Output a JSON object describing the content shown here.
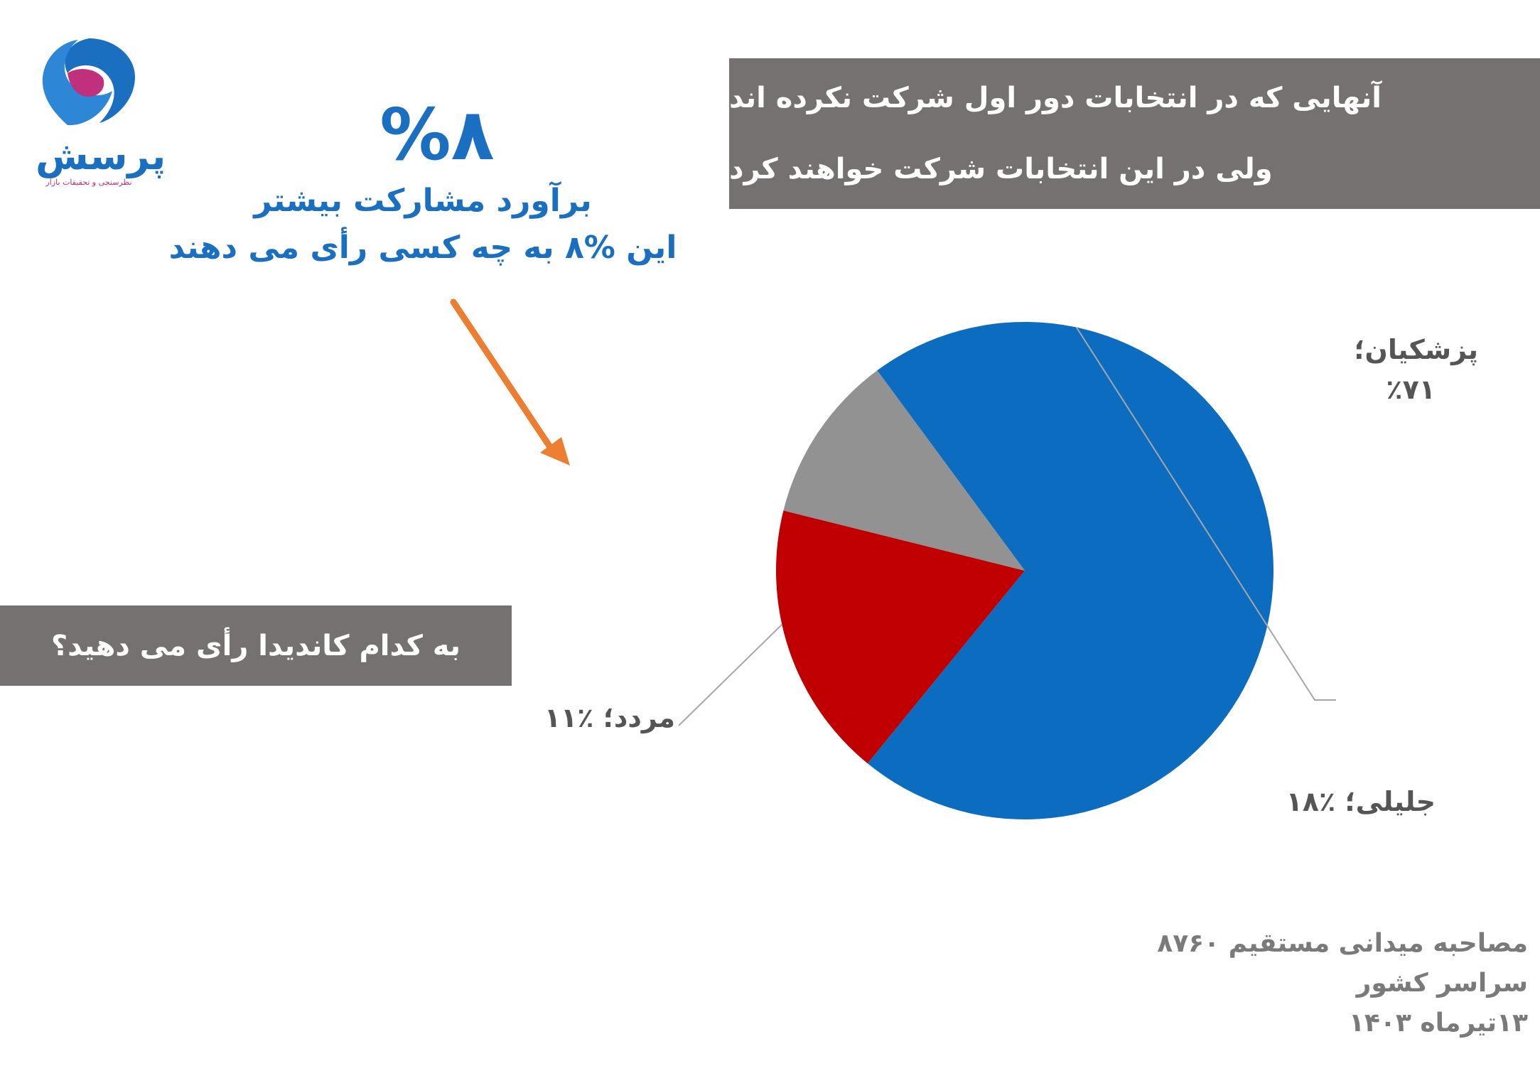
{
  "logo": {
    "name": "پرسش",
    "tagline": "نظرسنجی و تحقیقات بازار"
  },
  "headline": {
    "percent": "%۸",
    "line1": "برآورد مشارکت بیشتر",
    "line2": "این %۸ به چه کسی رأی می دهند"
  },
  "title": {
    "line1": "آنهایی که در انتخابات دور اول شرکت نکرده اند",
    "line2": "ولی در این انتخابات شرکت خواهند کرد"
  },
  "question": "به کدام کاندیدا رأی می دهید؟",
  "labels": {
    "pezeshkian_name": "پزشکیان؛",
    "pezeshkian_pct": "٪۷۱",
    "jalili": "جلیلی؛ ٪۱۸",
    "undecided": "مردد؛ ٪۱۱"
  },
  "footer": {
    "line1": "مصاحبه میدانی مستقیم ۸۷۶۰",
    "line2": "سراسر کشور",
    "line3": "۱۳تیرماه ۱۴۰۳"
  },
  "colors": {
    "pezeshkian": "#0b6cc0",
    "jalili": "#c00000",
    "undecided": "#929292",
    "accent_blue": "#1b6fc0",
    "arrow": "#ed7d31",
    "box": "#747170"
  },
  "chart_data": {
    "type": "pie",
    "categories": [
      "پزشکیان",
      "جلیلی",
      "مردد"
    ],
    "values": [
      71,
      18,
      11
    ],
    "unit": "%"
  }
}
